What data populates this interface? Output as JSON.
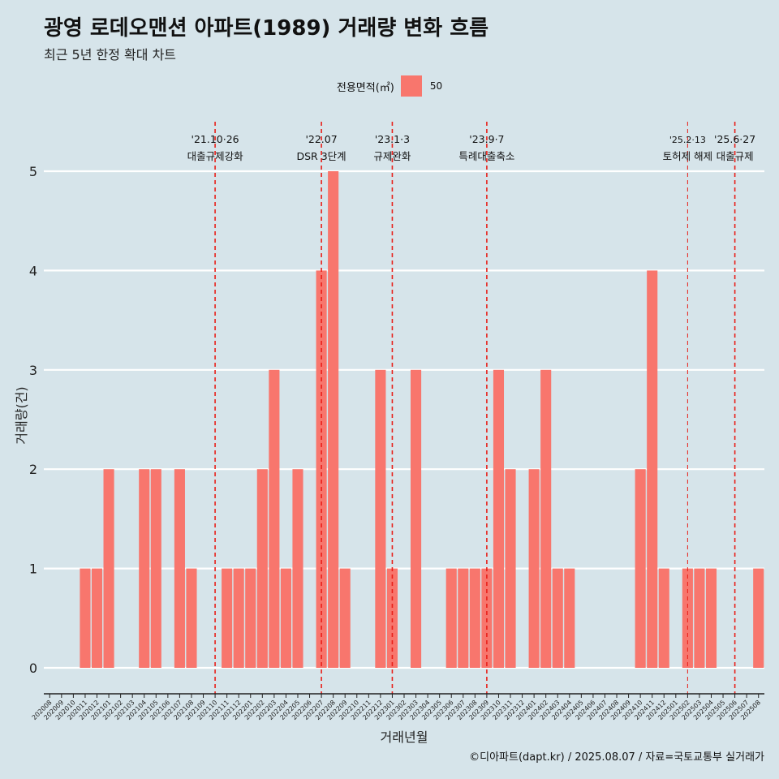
{
  "title": "광영 로데오맨션 아파트(1989) 거래량 변화 흐름",
  "subtitle": "최근 5년 한정 확대 차트",
  "legend": {
    "title": "전용면적(㎡)",
    "entry": "50"
  },
  "caption": "©디아파트(dapt.kr) / 2025.08.07 / 자료=국토교통부 실거래가",
  "colors": {
    "background": "#d6e4ea",
    "bar": "#f8766d",
    "event_line": "#e8201a",
    "grid": "#ffffff"
  },
  "chart_data": {
    "type": "bar",
    "xlabel": "거래년월",
    "ylabel": "거래량(건)",
    "ylim": [
      0,
      5
    ],
    "yticks": [
      0,
      1,
      2,
      3,
      4,
      5
    ],
    "grid": true,
    "legend_position": "top",
    "categories": [
      "202008",
      "202009",
      "202010",
      "202011",
      "202012",
      "202101",
      "202102",
      "202103",
      "202104",
      "202105",
      "202106",
      "202107",
      "202108",
      "202109",
      "202110",
      "202111",
      "202112",
      "202201",
      "202202",
      "202203",
      "202204",
      "202205",
      "202206",
      "202207",
      "202208",
      "202209",
      "202210",
      "202211",
      "202212",
      "202301",
      "202302",
      "202303",
      "202304",
      "202305",
      "202306",
      "202307",
      "202308",
      "202309",
      "202310",
      "202311",
      "202312",
      "202401",
      "202402",
      "202403",
      "202404",
      "202405",
      "202406",
      "202407",
      "202408",
      "202409",
      "202410",
      "202411",
      "202412",
      "202501",
      "202502",
      "202503",
      "202504",
      "202505",
      "202506",
      "202507",
      "202508"
    ],
    "series": [
      {
        "name": "50",
        "values": [
          0,
          0,
          0,
          1,
          1,
          2,
          0,
          0,
          2,
          2,
          0,
          2,
          1,
          0,
          0,
          1,
          1,
          1,
          2,
          3,
          1,
          2,
          0,
          4,
          5,
          1,
          0,
          0,
          3,
          1,
          0,
          3,
          0,
          0,
          1,
          1,
          1,
          1,
          3,
          2,
          0,
          2,
          3,
          1,
          1,
          0,
          0,
          0,
          0,
          0,
          2,
          4,
          1,
          0,
          1,
          1,
          1,
          0,
          0,
          0,
          1
        ]
      }
    ],
    "annotations": [
      {
        "date": "'21.10·26",
        "label": "대출규제강화",
        "x_position": 14.5
      },
      {
        "date": "'22.07",
        "label": "DSR 3단계",
        "x_position": 23.5
      },
      {
        "date": "'23.1·3",
        "label": "규제완화",
        "x_position": 29.5
      },
      {
        "date": "'23.9·7",
        "label": "특례대출축소",
        "x_position": 37.5
      },
      {
        "date": "'25.2·13",
        "label": "토허제 해제",
        "x_position": 54.5
      },
      {
        "date": "'25.6·27",
        "label": "대출규제",
        "x_position": 58.5
      }
    ]
  }
}
